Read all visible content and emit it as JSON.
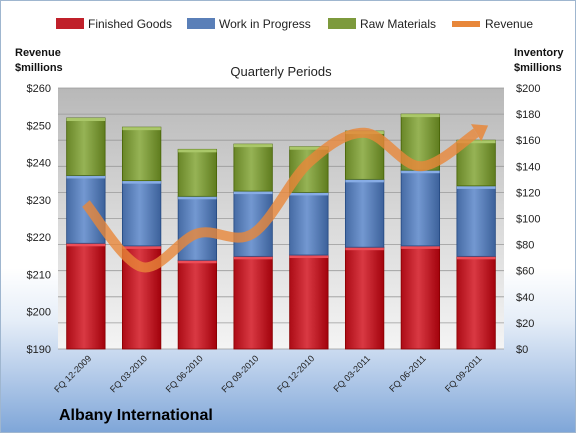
{
  "company": "Albany International",
  "chart_data": {
    "type": "bar",
    "stacked": true,
    "title": "Quarterly Periods",
    "categories": [
      "FQ 12-2009",
      "FQ 03-2010",
      "FQ 06-2010",
      "FQ 09-2010",
      "FQ 12-2010",
      "FQ 03-2011",
      "FQ 06-2011",
      "FQ 09-2011"
    ],
    "left_axis": {
      "label": "Revenue $millions",
      "label_lines": [
        "Revenue",
        "$millions"
      ],
      "min": 190,
      "max": 260,
      "step": 10,
      "tick_labels": [
        "$190",
        "$200",
        "$210",
        "$220",
        "$230",
        "$240",
        "$250",
        "$260"
      ]
    },
    "right_axis": {
      "label": "Inventory $millions",
      "label_lines": [
        "Inventory",
        "$millions"
      ],
      "min": 0,
      "max": 200,
      "step": 20,
      "tick_labels": [
        "$0",
        "$20",
        "$40",
        "$60",
        "$80",
        "$100",
        "$120",
        "$140",
        "$160",
        "$180",
        "$200"
      ]
    },
    "series": [
      {
        "name": "Finished Goods",
        "axis": "right",
        "color": "#c0202a",
        "values": [
          81,
          79,
          68,
          71,
          72,
          78,
          79,
          71
        ]
      },
      {
        "name": "Work in Progress",
        "axis": "right",
        "color": "#5a7fb8",
        "values": [
          52,
          50,
          49,
          50,
          48,
          52,
          58,
          54
        ]
      },
      {
        "name": "Raw Materials",
        "axis": "right",
        "color": "#7d9a3c",
        "values": [
          44,
          41,
          36,
          36,
          35,
          37,
          43,
          35
        ]
      }
    ],
    "line_series": [
      {
        "name": "Revenue",
        "axis": "left",
        "color": "#e8873a",
        "values": [
          229,
          212,
          221,
          221,
          240,
          248,
          239,
          248
        ]
      }
    ],
    "grid": true,
    "legend_position": "top"
  }
}
